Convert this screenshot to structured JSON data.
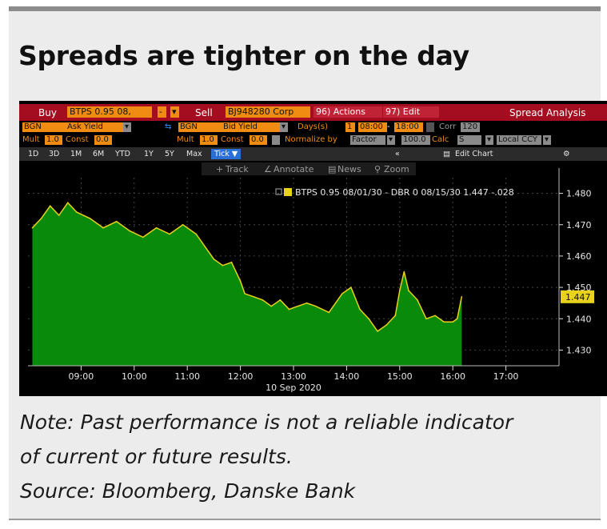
{
  "headline": "Spreads are tighter on the day",
  "terminal": {
    "toolbar": {
      "buy_label": "Buy",
      "buy_ticker": "BTPS 0.95 08,",
      "sell_label": "Sell",
      "sell_ticker": "BJ948280 Corp",
      "actions_menu": "96) Actions",
      "edit_menu": "97) Edit",
      "title": "Spread Analysis"
    },
    "row2": {
      "source_1": "BGN",
      "yield_1": "Ask Yield",
      "source_2": "BGN",
      "yield_2": "Bid Yield",
      "days_label": "Days(s)",
      "days_value": "1",
      "time_from": "08:00",
      "time_to": "18:00",
      "corr_label": "Corr",
      "corr_value": "120"
    },
    "row3": {
      "mult_label_1": "Mult",
      "mult_value_1": "1.0",
      "const_label_1": "Const",
      "const_value_1": "0.0",
      "mult_label_2": "Mult",
      "mult_value_2": "1.0",
      "const_label_2": "Const",
      "const_value_2": "0.0",
      "normalize_label": "Normalize by",
      "normalize_value": "Factor",
      "factor_value": "100.0",
      "calc_label": "Calc",
      "calc_value": "S",
      "currency_value": "Local CCY"
    },
    "periods": [
      "1D",
      "3D",
      "1M",
      "6M",
      "YTD",
      "1Y",
      "5Y",
      "Max"
    ],
    "tick_button": "Tick ▼",
    "edit_chart": "Edit Chart",
    "chart_tools": [
      "Track",
      "Annotate",
      "News",
      "Zoom"
    ],
    "legend_text": "BTPS 0.95 08/01/30 - DBR 0 08/15/30 1.447 -.028",
    "last_value": "1.447",
    "date_label": "10 Sep 2020"
  },
  "footnote": {
    "line1": "Note: Past performance is not a reliable indicator",
    "line2": "of current or future results.",
    "line3": "Source: Bloomberg, Danske Bank"
  },
  "colors": {
    "area_fill": "#0a8a0a",
    "line": "#e8d21a",
    "accent_orange": "#f08c12",
    "toolbar_red": "#a30d1f"
  },
  "chart_data": {
    "type": "area",
    "title": "Spreads are tighter on the day",
    "series": [
      {
        "name": "BTPS 0.95 08/01/30 - DBR 0 08/15/30",
        "x": [
          "08:05",
          "08:15",
          "08:25",
          "08:35",
          "08:45",
          "08:55",
          "09:10",
          "09:25",
          "09:40",
          "09:55",
          "10:10",
          "10:25",
          "10:40",
          "10:55",
          "11:10",
          "11:20",
          "11:30",
          "11:40",
          "11:50",
          "12:00",
          "12:05",
          "12:15",
          "12:25",
          "12:35",
          "12:45",
          "12:55",
          "13:05",
          "13:15",
          "13:25",
          "13:40",
          "13:55",
          "14:05",
          "14:15",
          "14:25",
          "14:35",
          "14:45",
          "14:55",
          "15:00",
          "15:05",
          "15:10",
          "15:20",
          "15:30",
          "15:40",
          "15:50",
          "16:00",
          "16:05",
          "16:10"
        ],
        "values": [
          1.469,
          1.472,
          1.476,
          1.473,
          1.477,
          1.474,
          1.472,
          1.469,
          1.471,
          1.468,
          1.466,
          1.469,
          1.467,
          1.47,
          1.467,
          1.463,
          1.459,
          1.457,
          1.458,
          1.452,
          1.448,
          1.447,
          1.446,
          1.444,
          1.446,
          1.443,
          1.444,
          1.445,
          1.444,
          1.442,
          1.448,
          1.45,
          1.443,
          1.44,
          1.436,
          1.438,
          1.441,
          1.449,
          1.455,
          1.449,
          1.446,
          1.44,
          1.441,
          1.439,
          1.439,
          1.44,
          1.447
        ]
      }
    ],
    "ylim": [
      1.425,
      1.485
    ],
    "yticks": [
      "1.480",
      "1.470",
      "1.460",
      "1.450",
      "1.440",
      "1.430"
    ],
    "xticks": [
      "09:00",
      "10:00",
      "11:00",
      "12:00",
      "13:00",
      "14:00",
      "15:00",
      "16:00",
      "17:00"
    ],
    "xlim": [
      "08:00",
      "18:00"
    ],
    "xlabel": "10 Sep 2020",
    "ylabel": "",
    "grid": true,
    "legend": "top-center"
  }
}
